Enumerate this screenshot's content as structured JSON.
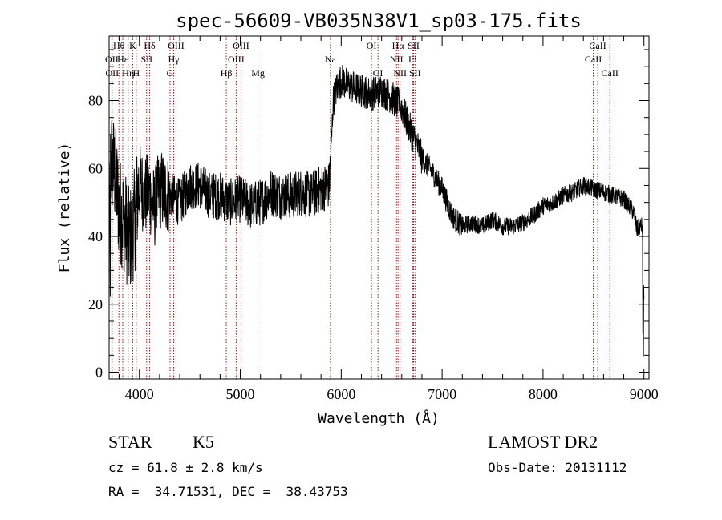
{
  "chart_data": {
    "type": "line",
    "title": "spec-56609-VB035N38V1_sp03-175.fits",
    "xlabel": "Wavelength (Å)",
    "ylabel": "Flux (relative)",
    "xlim": [
      3700,
      9050
    ],
    "ylim": [
      -2,
      99
    ],
    "x_ticks": [
      4000,
      5000,
      6000,
      7000,
      8000,
      9000
    ],
    "y_ticks": [
      0,
      20,
      40,
      60,
      80
    ],
    "grid": false,
    "legend": "none",
    "line_color": "#000000",
    "marker_color": "#8b1a1a",
    "spectrum_anchors": [
      [
        3700,
        55
      ],
      [
        3720,
        63
      ],
      [
        3760,
        58
      ],
      [
        3800,
        48
      ],
      [
        3850,
        45
      ],
      [
        3900,
        38
      ],
      [
        3950,
        44
      ],
      [
        4000,
        56
      ],
      [
        4050,
        52
      ],
      [
        4100,
        53
      ],
      [
        4150,
        48
      ],
      [
        4200,
        54
      ],
      [
        4300,
        52
      ],
      [
        4400,
        50
      ],
      [
        4500,
        55
      ],
      [
        4600,
        55
      ],
      [
        4700,
        52
      ],
      [
        4800,
        52
      ],
      [
        4900,
        50
      ],
      [
        5000,
        51
      ],
      [
        5100,
        49
      ],
      [
        5200,
        50
      ],
      [
        5300,
        53
      ],
      [
        5400,
        52
      ],
      [
        5500,
        52
      ],
      [
        5600,
        53
      ],
      [
        5700,
        52
      ],
      [
        5800,
        54
      ],
      [
        5880,
        55
      ],
      [
        5900,
        65
      ],
      [
        5920,
        80
      ],
      [
        5960,
        84
      ],
      [
        6000,
        86
      ],
      [
        6100,
        84
      ],
      [
        6200,
        83
      ],
      [
        6300,
        82
      ],
      [
        6400,
        83
      ],
      [
        6500,
        81
      ],
      [
        6600,
        78
      ],
      [
        6650,
        74
      ],
      [
        6700,
        70
      ],
      [
        6750,
        67
      ],
      [
        6800,
        63
      ],
      [
        6900,
        59
      ],
      [
        7000,
        54
      ],
      [
        7100,
        46
      ],
      [
        7200,
        43
      ],
      [
        7300,
        44
      ],
      [
        7400,
        43
      ],
      [
        7500,
        45
      ],
      [
        7600,
        43
      ],
      [
        7700,
        43
      ],
      [
        7800,
        44
      ],
      [
        7900,
        46
      ],
      [
        8000,
        49
      ],
      [
        8100,
        50
      ],
      [
        8200,
        52
      ],
      [
        8300,
        53
      ],
      [
        8400,
        55
      ],
      [
        8500,
        54
      ],
      [
        8600,
        53
      ],
      [
        8700,
        52
      ],
      [
        8800,
        51
      ],
      [
        8850,
        49
      ],
      [
        8900,
        47
      ],
      [
        8930,
        42
      ],
      [
        8960,
        43
      ],
      [
        9000,
        43
      ]
    ],
    "spectral_lines": [
      {
        "label": "Hθ",
        "wavelength": 3797,
        "row": 0
      },
      {
        "label": "OII",
        "wavelength": 3727,
        "row": 1
      },
      {
        "label": "OII",
        "wavelength": 3730,
        "row": 2
      },
      {
        "label": "Hε",
        "wavelength": 3835,
        "row": 1
      },
      {
        "label": "Hη",
        "wavelength": 3889,
        "row": 2
      },
      {
        "label": "K",
        "wavelength": 3934,
        "row": 0
      },
      {
        "label": "SII",
        "wavelength": 4072,
        "row": 1
      },
      {
        "label": "H",
        "wavelength": 3969,
        "row": 2
      },
      {
        "label": "Hδ",
        "wavelength": 4102,
        "row": 0
      },
      {
        "label": "OIII",
        "wavelength": 4363,
        "row": 0
      },
      {
        "label": "Hγ",
        "wavelength": 4340,
        "row": 1
      },
      {
        "label": "G",
        "wavelength": 4304,
        "row": 2
      },
      {
        "label": "OIII",
        "wavelength": 5007,
        "row": 0
      },
      {
        "label": "OIII",
        "wavelength": 4959,
        "row": 1
      },
      {
        "label": "Hβ",
        "wavelength": 4861,
        "row": 2
      },
      {
        "label": "Mg",
        "wavelength": 5175,
        "row": 2
      },
      {
        "label": "Na",
        "wavelength": 5893,
        "row": 1
      },
      {
        "label": "OI",
        "wavelength": 6300,
        "row": 0
      },
      {
        "label": "OI",
        "wavelength": 6364,
        "row": 2
      },
      {
        "label": "Hα",
        "wavelength": 6563,
        "row": 0
      },
      {
        "label": "NII",
        "wavelength": 6548,
        "row": 1
      },
      {
        "label": "NII",
        "wavelength": 6583,
        "row": 2
      },
      {
        "label": "SII",
        "wavelength": 6717,
        "row": 0
      },
      {
        "label": "Li",
        "wavelength": 6708,
        "row": 1
      },
      {
        "label": "SII",
        "wavelength": 6731,
        "row": 2
      },
      {
        "label": "CaII",
        "wavelength": 8542,
        "row": 0
      },
      {
        "label": "CaII",
        "wavelength": 8498,
        "row": 1
      },
      {
        "label": "CaII",
        "wavelength": 8662,
        "row": 2
      }
    ]
  },
  "info": {
    "class": "STAR",
    "subclass": "K5",
    "survey": "LAMOST DR2",
    "cz": "cz = 61.8 ± 2.8 km/s",
    "obs_date": "Obs-Date: 20131112",
    "radec": "RA =  34.71531, DEC =  38.43753"
  }
}
